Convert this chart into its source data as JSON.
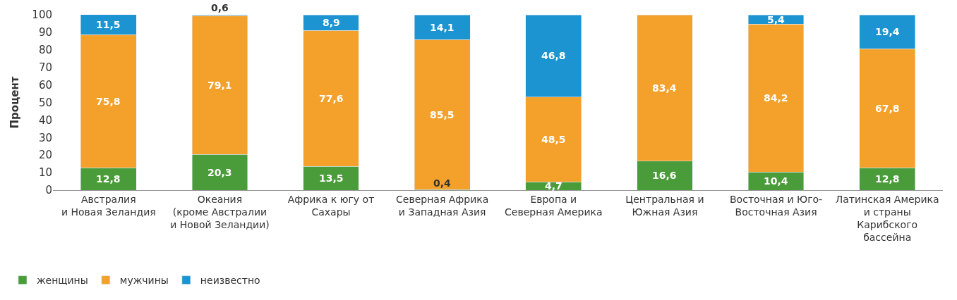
{
  "chart_data": {
    "type": "bar",
    "stacked": true,
    "ylabel": "Процент",
    "ylim": [
      0,
      100
    ],
    "yticks": [
      0,
      10,
      20,
      30,
      40,
      50,
      60,
      70,
      80,
      90,
      100
    ],
    "legend": "bottom left",
    "categories": [
      "Австралия\nи Новая Зеландия",
      "Океания\n(кроме Австралии\nи Новой Зеландии)",
      "Африка к югу от\nСахары",
      "Северная Африка\nи Западная Азия",
      "Европа и\nСеверная Америка",
      "Центральная и\nЮжная Азия",
      "Восточная и Юго-\nВосточная Азия",
      "Латинская Америка\nи страны\nКарибского\nбассейна"
    ],
    "series": [
      {
        "name": "женщины",
        "color": "#4a9c3a",
        "values": [
          12.8,
          20.3,
          13.5,
          0.4,
          4.7,
          16.6,
          10.4,
          12.8
        ],
        "value_labels": [
          "12,8",
          "20,3",
          "13,5",
          "0,4",
          "4,7",
          "16,6",
          "10,4",
          "12,8"
        ]
      },
      {
        "name": "мужчины",
        "color": "#f4a12c",
        "values": [
          75.8,
          79.1,
          77.6,
          85.5,
          48.5,
          83.4,
          84.2,
          67.8
        ],
        "value_labels": [
          "75,8",
          "79,1",
          "77,6",
          "85,5",
          "48,5",
          "83,4",
          "84,2",
          "67,8"
        ]
      },
      {
        "name": "неизвестно",
        "color": "#1b94d1",
        "values": [
          11.5,
          0.6,
          8.9,
          14.1,
          46.8,
          null,
          5.4,
          19.4
        ],
        "value_labels": [
          "11,5",
          "0,6",
          "8,9",
          "14,1",
          "46,8",
          null,
          "5,4",
          "19,4"
        ]
      }
    ]
  }
}
